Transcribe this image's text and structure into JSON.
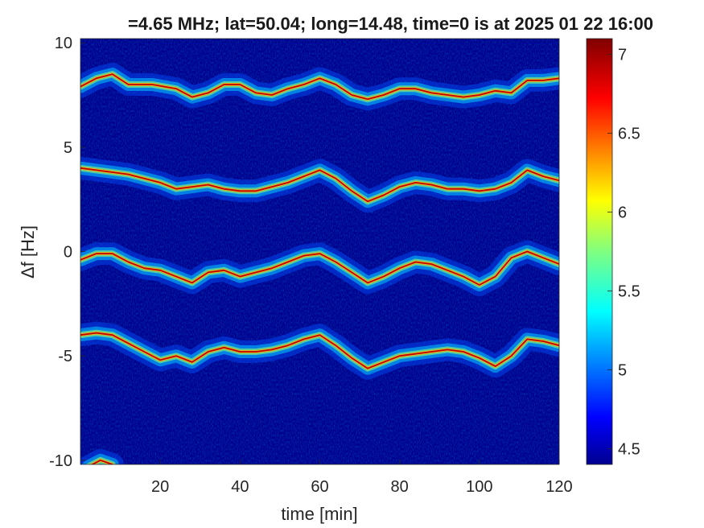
{
  "chart_data": {
    "type": "heatmap",
    "title": "=4.65 MHz;  lat=50.04; long=14.48, time=0 is at 2025 01 22 16:00",
    "xlabel": "time [min]",
    "ylabel": "Δf [Hz]",
    "xlim": [
      0,
      120
    ],
    "ylim": [
      -10.2,
      10.2
    ],
    "xticks": [
      20,
      40,
      60,
      80,
      100,
      120
    ],
    "yticks": [
      10,
      5,
      0,
      -5,
      -10
    ],
    "ytick_labels": [
      "10",
      "5",
      "0",
      "-5",
      "-10"
    ],
    "colorbar": {
      "range": [
        4.4,
        7.1
      ],
      "ticks": [
        4.5,
        5,
        5.5,
        6,
        6.5,
        7
      ],
      "tick_labels": [
        "4.5",
        "5",
        "5.5",
        "6",
        "6.5",
        "7"
      ],
      "colormap": "jet"
    },
    "background_color": "#00008f",
    "traces": [
      {
        "name": "",
        "points": [
          [
            0,
            7.9
          ],
          [
            4,
            8.3
          ],
          [
            8,
            8.5
          ],
          [
            12,
            8.0
          ],
          [
            18,
            8.0
          ],
          [
            24,
            7.8
          ],
          [
            28,
            7.4
          ],
          [
            32,
            7.6
          ],
          [
            36,
            8.0
          ],
          [
            40,
            8.0
          ],
          [
            44,
            7.6
          ],
          [
            48,
            7.5
          ],
          [
            52,
            7.8
          ],
          [
            56,
            8.0
          ],
          [
            60,
            8.3
          ],
          [
            64,
            8.0
          ],
          [
            68,
            7.5
          ],
          [
            72,
            7.3
          ],
          [
            76,
            7.5
          ],
          [
            80,
            7.8
          ],
          [
            84,
            7.8
          ],
          [
            88,
            7.6
          ],
          [
            92,
            7.5
          ],
          [
            96,
            7.4
          ],
          [
            100,
            7.5
          ],
          [
            104,
            7.7
          ],
          [
            108,
            7.6
          ],
          [
            112,
            8.2
          ],
          [
            116,
            8.2
          ],
          [
            120,
            8.3
          ]
        ]
      },
      {
        "name": "",
        "points": [
          [
            0,
            4.0
          ],
          [
            4,
            3.9
          ],
          [
            8,
            3.8
          ],
          [
            12,
            3.7
          ],
          [
            16,
            3.5
          ],
          [
            20,
            3.3
          ],
          [
            24,
            3.0
          ],
          [
            28,
            3.1
          ],
          [
            32,
            3.2
          ],
          [
            36,
            3.0
          ],
          [
            40,
            2.9
          ],
          [
            44,
            2.9
          ],
          [
            48,
            3.1
          ],
          [
            52,
            3.3
          ],
          [
            56,
            3.6
          ],
          [
            60,
            3.9
          ],
          [
            64,
            3.5
          ],
          [
            68,
            2.9
          ],
          [
            72,
            2.4
          ],
          [
            76,
            2.7
          ],
          [
            80,
            3.1
          ],
          [
            84,
            3.3
          ],
          [
            88,
            3.2
          ],
          [
            92,
            3.0
          ],
          [
            96,
            3.0
          ],
          [
            100,
            2.9
          ],
          [
            104,
            3.0
          ],
          [
            108,
            3.3
          ],
          [
            112,
            3.9
          ],
          [
            116,
            3.6
          ],
          [
            120,
            3.4
          ]
        ]
      },
      {
        "name": "",
        "points": [
          [
            0,
            -0.4
          ],
          [
            4,
            -0.1
          ],
          [
            8,
            -0.1
          ],
          [
            12,
            -0.5
          ],
          [
            16,
            -0.8
          ],
          [
            20,
            -0.9
          ],
          [
            24,
            -1.2
          ],
          [
            28,
            -1.5
          ],
          [
            32,
            -1.0
          ],
          [
            36,
            -0.9
          ],
          [
            40,
            -1.2
          ],
          [
            44,
            -1.0
          ],
          [
            48,
            -0.8
          ],
          [
            52,
            -0.5
          ],
          [
            56,
            -0.2
          ],
          [
            60,
            -0.1
          ],
          [
            64,
            -0.5
          ],
          [
            68,
            -1.0
          ],
          [
            72,
            -1.5
          ],
          [
            76,
            -1.2
          ],
          [
            80,
            -0.8
          ],
          [
            84,
            -0.5
          ],
          [
            88,
            -0.6
          ],
          [
            92,
            -0.9
          ],
          [
            96,
            -1.2
          ],
          [
            100,
            -1.6
          ],
          [
            104,
            -1.2
          ],
          [
            108,
            -0.3
          ],
          [
            112,
            0.0
          ],
          [
            116,
            -0.3
          ],
          [
            120,
            -0.6
          ]
        ]
      },
      {
        "name": "",
        "points": [
          [
            0,
            -4.0
          ],
          [
            4,
            -3.9
          ],
          [
            8,
            -4.0
          ],
          [
            12,
            -4.4
          ],
          [
            16,
            -4.8
          ],
          [
            20,
            -5.2
          ],
          [
            24,
            -5.0
          ],
          [
            28,
            -5.3
          ],
          [
            32,
            -4.8
          ],
          [
            36,
            -4.6
          ],
          [
            40,
            -4.8
          ],
          [
            44,
            -4.8
          ],
          [
            48,
            -4.7
          ],
          [
            52,
            -4.5
          ],
          [
            56,
            -4.2
          ],
          [
            60,
            -4.0
          ],
          [
            64,
            -4.5
          ],
          [
            68,
            -5.1
          ],
          [
            72,
            -5.6
          ],
          [
            76,
            -5.3
          ],
          [
            80,
            -5.0
          ],
          [
            84,
            -4.9
          ],
          [
            88,
            -4.8
          ],
          [
            92,
            -4.7
          ],
          [
            96,
            -4.8
          ],
          [
            100,
            -5.1
          ],
          [
            104,
            -5.5
          ],
          [
            108,
            -5.0
          ],
          [
            112,
            -4.2
          ],
          [
            116,
            -4.3
          ],
          [
            120,
            -4.5
          ]
        ]
      },
      {
        "name": "",
        "points": [
          [
            2,
            -10.3
          ],
          [
            5,
            -10.0
          ],
          [
            8,
            -10.2
          ]
        ]
      }
    ]
  }
}
